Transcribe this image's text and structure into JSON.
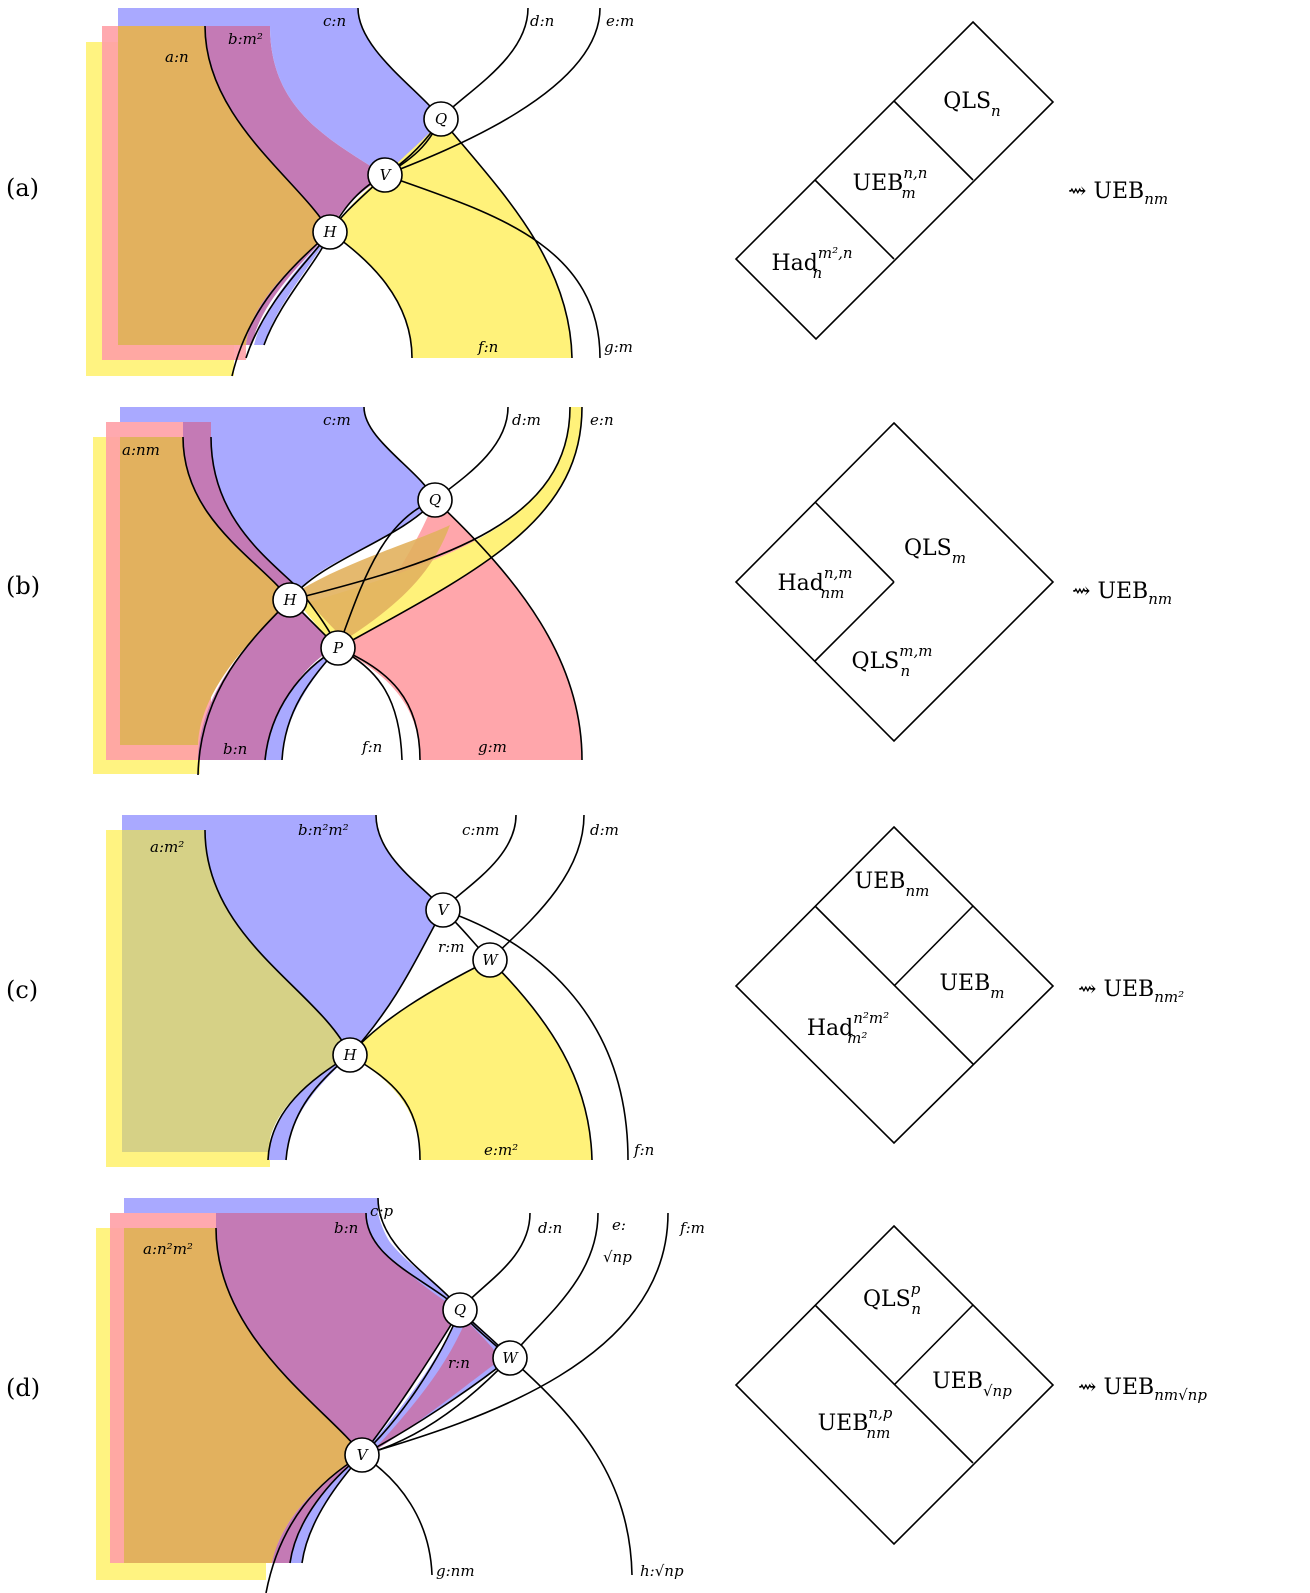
{
  "panels": [
    {
      "id": "a",
      "label": "(a)",
      "nodes": [
        "Q",
        "V",
        "H"
      ],
      "wires": [
        {
          "name": "a",
          "size": "n"
        },
        {
          "name": "b",
          "size": "m²"
        },
        {
          "name": "c",
          "size": "n"
        },
        {
          "name": "d",
          "size": "n"
        },
        {
          "name": "e",
          "size": "m"
        },
        {
          "name": "f",
          "size": "n"
        },
        {
          "name": "g",
          "size": "m"
        }
      ],
      "blocks": [
        {
          "base": "QLS",
          "sub": "n",
          "sup": ""
        },
        {
          "base": "UEB",
          "sub": "m",
          "sup": "n,n"
        },
        {
          "base": "Had",
          "sub": "n",
          "sup": "m²,n"
        }
      ],
      "result": {
        "arrow": "⇝",
        "base": "UEB",
        "sub": "nm"
      }
    },
    {
      "id": "b",
      "label": "(b)",
      "nodes": [
        "Q",
        "H",
        "P"
      ],
      "wires": [
        {
          "name": "a",
          "size": "nm"
        },
        {
          "name": "c",
          "size": "m"
        },
        {
          "name": "d",
          "size": "m"
        },
        {
          "name": "e",
          "size": "n"
        },
        {
          "name": "b",
          "size": "n"
        },
        {
          "name": "f",
          "size": "n"
        },
        {
          "name": "g",
          "size": "m"
        }
      ],
      "blocks": [
        {
          "base": "QLS",
          "sub": "m",
          "sup": ""
        },
        {
          "base": "Had",
          "sub": "nm",
          "sup": "n,m"
        },
        {
          "base": "QLS",
          "sub": "n",
          "sup": "m,m"
        }
      ],
      "result": {
        "arrow": "⇝",
        "base": "UEB",
        "sub": "nm"
      }
    },
    {
      "id": "c",
      "label": "(c)",
      "nodes": [
        "V",
        "W",
        "H"
      ],
      "wires": [
        {
          "name": "a",
          "size": "m²"
        },
        {
          "name": "b",
          "size": "n²m²"
        },
        {
          "name": "c",
          "size": "nm"
        },
        {
          "name": "d",
          "size": "m"
        },
        {
          "name": "r",
          "size": "m"
        },
        {
          "name": "e",
          "size": "m²"
        },
        {
          "name": "f",
          "size": "n"
        }
      ],
      "blocks": [
        {
          "base": "UEB",
          "sub": "nm",
          "sup": ""
        },
        {
          "base": "UEB",
          "sub": "m",
          "sup": ""
        },
        {
          "base": "Had",
          "sub": "m²",
          "sup": "n²m²"
        }
      ],
      "result": {
        "arrow": "⇝",
        "base": "UEB",
        "sub": "nm²"
      }
    },
    {
      "id": "d",
      "label": "(d)",
      "nodes": [
        "Q",
        "W",
        "V"
      ],
      "wires": [
        {
          "name": "a",
          "size": "n²m²"
        },
        {
          "name": "b",
          "size": "n"
        },
        {
          "name": "c",
          "size": "p"
        },
        {
          "name": "d",
          "size": "n"
        },
        {
          "name": "e",
          "size": "√np"
        },
        {
          "name": "f",
          "size": "m"
        },
        {
          "name": "r",
          "size": "n"
        },
        {
          "name": "g",
          "size": "nm"
        },
        {
          "name": "h",
          "size": "√np"
        }
      ],
      "blocks": [
        {
          "base": "QLS",
          "sub": "n",
          "sup": "p"
        },
        {
          "base": "UEB",
          "sub": "√np",
          "sup": ""
        },
        {
          "base": "UEB",
          "sub": "nm",
          "sup": "n,p"
        }
      ],
      "result": {
        "arrow": "⇝",
        "base": "UEB",
        "sub": "nm√np"
      }
    }
  ],
  "colors": {
    "yellow": "#fff27a",
    "pink": "#ff9fa6",
    "blue": "#a5a5ff",
    "purple": "#c17ab3",
    "orange": "#e0b15a",
    "olive": "#d6d186"
  }
}
